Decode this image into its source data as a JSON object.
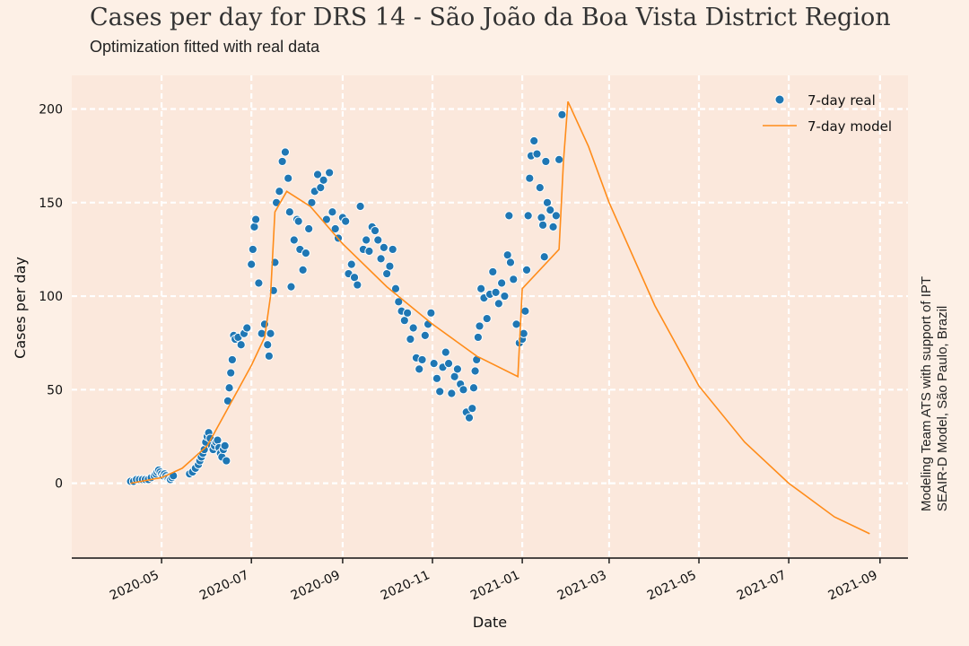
{
  "chart_data": {
    "type": "scatter",
    "title": "Cases per day for DRS 14 - São João da Boa Vista District Region",
    "subtitle": "Optimization fitted with real data",
    "side_note": [
      "Modeling Team ATS with support of IPT",
      "SEAIR-D Model, São Paulo, Brazil"
    ],
    "xlabel": "Date",
    "ylabel": "Cases per day",
    "xlim": [
      "2020-03-01",
      "2021-09-20"
    ],
    "ylim": [
      -40,
      218
    ],
    "x_ticks": [
      "2020-05-01",
      "2020-07-01",
      "2020-09-01",
      "2020-11-01",
      "2021-01-01",
      "2021-03-01",
      "2021-05-01",
      "2021-07-01",
      "2021-09-01"
    ],
    "x_tick_labels": [
      "2020-05",
      "2020-07",
      "2020-09",
      "2020-11",
      "2021-01",
      "2021-03",
      "2021-05",
      "2021-07",
      "2021-09"
    ],
    "y_ticks": [
      0,
      50,
      100,
      150,
      200
    ],
    "grid": true,
    "legend_position": "top-right",
    "colors": {
      "real": "#1f77b4",
      "model": "#ff8c1a",
      "plot_bg": "#fbe8dc",
      "grid": "#ffffff"
    },
    "series": [
      {
        "name": "7-day real",
        "kind": "scatter",
        "points": [
          [
            "2020-04-10",
            1
          ],
          [
            "2020-04-12",
            1
          ],
          [
            "2020-04-14",
            2
          ],
          [
            "2020-04-16",
            2
          ],
          [
            "2020-04-18",
            2
          ],
          [
            "2020-04-20",
            2
          ],
          [
            "2020-04-22",
            2
          ],
          [
            "2020-04-24",
            3
          ],
          [
            "2020-04-26",
            4
          ],
          [
            "2020-04-27",
            5
          ],
          [
            "2020-04-28",
            6
          ],
          [
            "2020-04-29",
            7
          ],
          [
            "2020-04-30",
            6
          ],
          [
            "2020-05-01",
            5
          ],
          [
            "2020-05-02",
            4
          ],
          [
            "2020-05-03",
            5
          ],
          [
            "2020-05-04",
            4
          ],
          [
            "2020-05-05",
            3
          ],
          [
            "2020-05-06",
            3
          ],
          [
            "2020-05-07",
            2
          ],
          [
            "2020-05-08",
            3
          ],
          [
            "2020-05-09",
            4
          ],
          [
            "2020-05-20",
            5
          ],
          [
            "2020-05-22",
            6
          ],
          [
            "2020-05-24",
            8
          ],
          [
            "2020-05-26",
            10
          ],
          [
            "2020-05-27",
            12
          ],
          [
            "2020-05-28",
            14
          ],
          [
            "2020-05-29",
            16
          ],
          [
            "2020-05-30",
            18
          ],
          [
            "2020-05-31",
            22
          ],
          [
            "2020-06-01",
            25
          ],
          [
            "2020-06-02",
            27
          ],
          [
            "2020-06-03",
            24
          ],
          [
            "2020-06-04",
            20
          ],
          [
            "2020-06-05",
            18
          ],
          [
            "2020-06-06",
            20
          ],
          [
            "2020-06-07",
            22
          ],
          [
            "2020-06-08",
            23
          ],
          [
            "2020-06-09",
            19
          ],
          [
            "2020-06-10",
            16
          ],
          [
            "2020-06-11",
            14
          ],
          [
            "2020-06-12",
            18
          ],
          [
            "2020-06-13",
            20
          ],
          [
            "2020-06-14",
            12
          ],
          [
            "2020-06-15",
            44
          ],
          [
            "2020-06-16",
            51
          ],
          [
            "2020-06-17",
            59
          ],
          [
            "2020-06-18",
            66
          ],
          [
            "2020-06-19",
            79
          ],
          [
            "2020-06-20",
            77
          ],
          [
            "2020-06-22",
            78
          ],
          [
            "2020-06-24",
            74
          ],
          [
            "2020-06-26",
            80
          ],
          [
            "2020-06-28",
            83
          ],
          [
            "2020-07-01",
            117
          ],
          [
            "2020-07-02",
            125
          ],
          [
            "2020-07-03",
            137
          ],
          [
            "2020-07-04",
            141
          ],
          [
            "2020-07-06",
            107
          ],
          [
            "2020-07-08",
            80
          ],
          [
            "2020-07-10",
            85
          ],
          [
            "2020-07-12",
            74
          ],
          [
            "2020-07-13",
            68
          ],
          [
            "2020-07-14",
            80
          ],
          [
            "2020-07-16",
            103
          ],
          [
            "2020-07-17",
            118
          ],
          [
            "2020-07-18",
            150
          ],
          [
            "2020-07-20",
            156
          ],
          [
            "2020-07-22",
            172
          ],
          [
            "2020-07-24",
            177
          ],
          [
            "2020-07-26",
            163
          ],
          [
            "2020-07-27",
            145
          ],
          [
            "2020-07-28",
            105
          ],
          [
            "2020-07-30",
            130
          ],
          [
            "2020-08-01",
            141
          ],
          [
            "2020-08-02",
            140
          ],
          [
            "2020-08-03",
            125
          ],
          [
            "2020-08-05",
            114
          ],
          [
            "2020-08-07",
            123
          ],
          [
            "2020-08-09",
            136
          ],
          [
            "2020-08-11",
            150
          ],
          [
            "2020-08-13",
            156
          ],
          [
            "2020-08-15",
            165
          ],
          [
            "2020-08-17",
            158
          ],
          [
            "2020-08-19",
            162
          ],
          [
            "2020-08-21",
            141
          ],
          [
            "2020-08-23",
            166
          ],
          [
            "2020-08-25",
            145
          ],
          [
            "2020-08-27",
            136
          ],
          [
            "2020-08-29",
            131
          ],
          [
            "2020-09-01",
            142
          ],
          [
            "2020-09-03",
            140
          ],
          [
            "2020-09-05",
            112
          ],
          [
            "2020-09-07",
            117
          ],
          [
            "2020-09-09",
            110
          ],
          [
            "2020-09-11",
            106
          ],
          [
            "2020-09-13",
            148
          ],
          [
            "2020-09-15",
            125
          ],
          [
            "2020-09-17",
            130
          ],
          [
            "2020-09-19",
            124
          ],
          [
            "2020-09-21",
            137
          ],
          [
            "2020-09-23",
            135
          ],
          [
            "2020-09-25",
            130
          ],
          [
            "2020-09-27",
            120
          ],
          [
            "2020-09-29",
            126
          ],
          [
            "2020-10-01",
            112
          ],
          [
            "2020-10-03",
            116
          ],
          [
            "2020-10-05",
            125
          ],
          [
            "2020-10-07",
            104
          ],
          [
            "2020-10-09",
            97
          ],
          [
            "2020-10-11",
            92
          ],
          [
            "2020-10-13",
            87
          ],
          [
            "2020-10-15",
            91
          ],
          [
            "2020-10-17",
            77
          ],
          [
            "2020-10-19",
            83
          ],
          [
            "2020-10-21",
            67
          ],
          [
            "2020-10-23",
            61
          ],
          [
            "2020-10-25",
            66
          ],
          [
            "2020-10-27",
            79
          ],
          [
            "2020-10-29",
            85
          ],
          [
            "2020-10-31",
            91
          ],
          [
            "2020-11-02",
            64
          ],
          [
            "2020-11-04",
            56
          ],
          [
            "2020-11-06",
            49
          ],
          [
            "2020-11-08",
            62
          ],
          [
            "2020-11-10",
            70
          ],
          [
            "2020-11-12",
            64
          ],
          [
            "2020-11-14",
            48
          ],
          [
            "2020-11-16",
            57
          ],
          [
            "2020-11-18",
            61
          ],
          [
            "2020-11-20",
            53
          ],
          [
            "2020-11-22",
            50
          ],
          [
            "2020-11-24",
            38
          ],
          [
            "2020-11-26",
            35
          ],
          [
            "2020-11-28",
            40
          ],
          [
            "2020-11-29",
            51
          ],
          [
            "2020-11-30",
            60
          ],
          [
            "2020-12-01",
            66
          ],
          [
            "2020-12-02",
            78
          ],
          [
            "2020-12-03",
            84
          ],
          [
            "2020-12-04",
            104
          ],
          [
            "2020-12-06",
            99
          ],
          [
            "2020-12-08",
            88
          ],
          [
            "2020-12-10",
            101
          ],
          [
            "2020-12-12",
            113
          ],
          [
            "2020-12-14",
            102
          ],
          [
            "2020-12-16",
            96
          ],
          [
            "2020-12-18",
            107
          ],
          [
            "2020-12-20",
            100
          ],
          [
            "2020-12-22",
            122
          ],
          [
            "2020-12-23",
            143
          ],
          [
            "2020-12-24",
            118
          ],
          [
            "2020-12-26",
            109
          ],
          [
            "2020-12-28",
            85
          ],
          [
            "2020-12-30",
            75
          ],
          [
            "2021-01-01",
            77
          ],
          [
            "2021-01-02",
            80
          ],
          [
            "2021-01-03",
            92
          ],
          [
            "2021-01-04",
            114
          ],
          [
            "2021-01-05",
            143
          ],
          [
            "2021-01-06",
            163
          ],
          [
            "2021-01-07",
            175
          ],
          [
            "2021-01-09",
            183
          ],
          [
            "2021-01-11",
            176
          ],
          [
            "2021-01-13",
            158
          ],
          [
            "2021-01-14",
            142
          ],
          [
            "2021-01-15",
            138
          ],
          [
            "2021-01-16",
            121
          ],
          [
            "2021-01-17",
            172
          ],
          [
            "2021-01-18",
            150
          ],
          [
            "2021-01-20",
            146
          ],
          [
            "2021-01-22",
            137
          ],
          [
            "2021-01-24",
            143
          ],
          [
            "2021-01-26",
            173
          ],
          [
            "2021-01-28",
            197
          ]
        ]
      },
      {
        "name": "7-day model",
        "kind": "line",
        "points": [
          [
            "2020-04-10",
            0
          ],
          [
            "2020-05-01",
            3
          ],
          [
            "2020-05-15",
            8
          ],
          [
            "2020-06-01",
            20
          ],
          [
            "2020-06-15",
            40
          ],
          [
            "2020-07-01",
            63
          ],
          [
            "2020-07-10",
            78
          ],
          [
            "2020-07-14",
            100
          ],
          [
            "2020-07-17",
            145
          ],
          [
            "2020-07-25",
            156
          ],
          [
            "2020-08-10",
            148
          ],
          [
            "2020-09-01",
            128
          ],
          [
            "2020-10-01",
            105
          ],
          [
            "2020-11-01",
            85
          ],
          [
            "2020-12-01",
            68
          ],
          [
            "2020-12-29",
            57
          ],
          [
            "2021-01-01",
            104
          ],
          [
            "2021-01-26",
            125
          ],
          [
            "2021-01-29",
            172
          ],
          [
            "2021-02-01",
            204
          ],
          [
            "2021-02-15",
            180
          ],
          [
            "2021-03-01",
            150
          ],
          [
            "2021-04-01",
            95
          ],
          [
            "2021-05-01",
            52
          ],
          [
            "2021-06-01",
            22
          ],
          [
            "2021-07-01",
            0
          ],
          [
            "2021-08-01",
            -18
          ],
          [
            "2021-08-25",
            -27
          ]
        ]
      }
    ]
  }
}
